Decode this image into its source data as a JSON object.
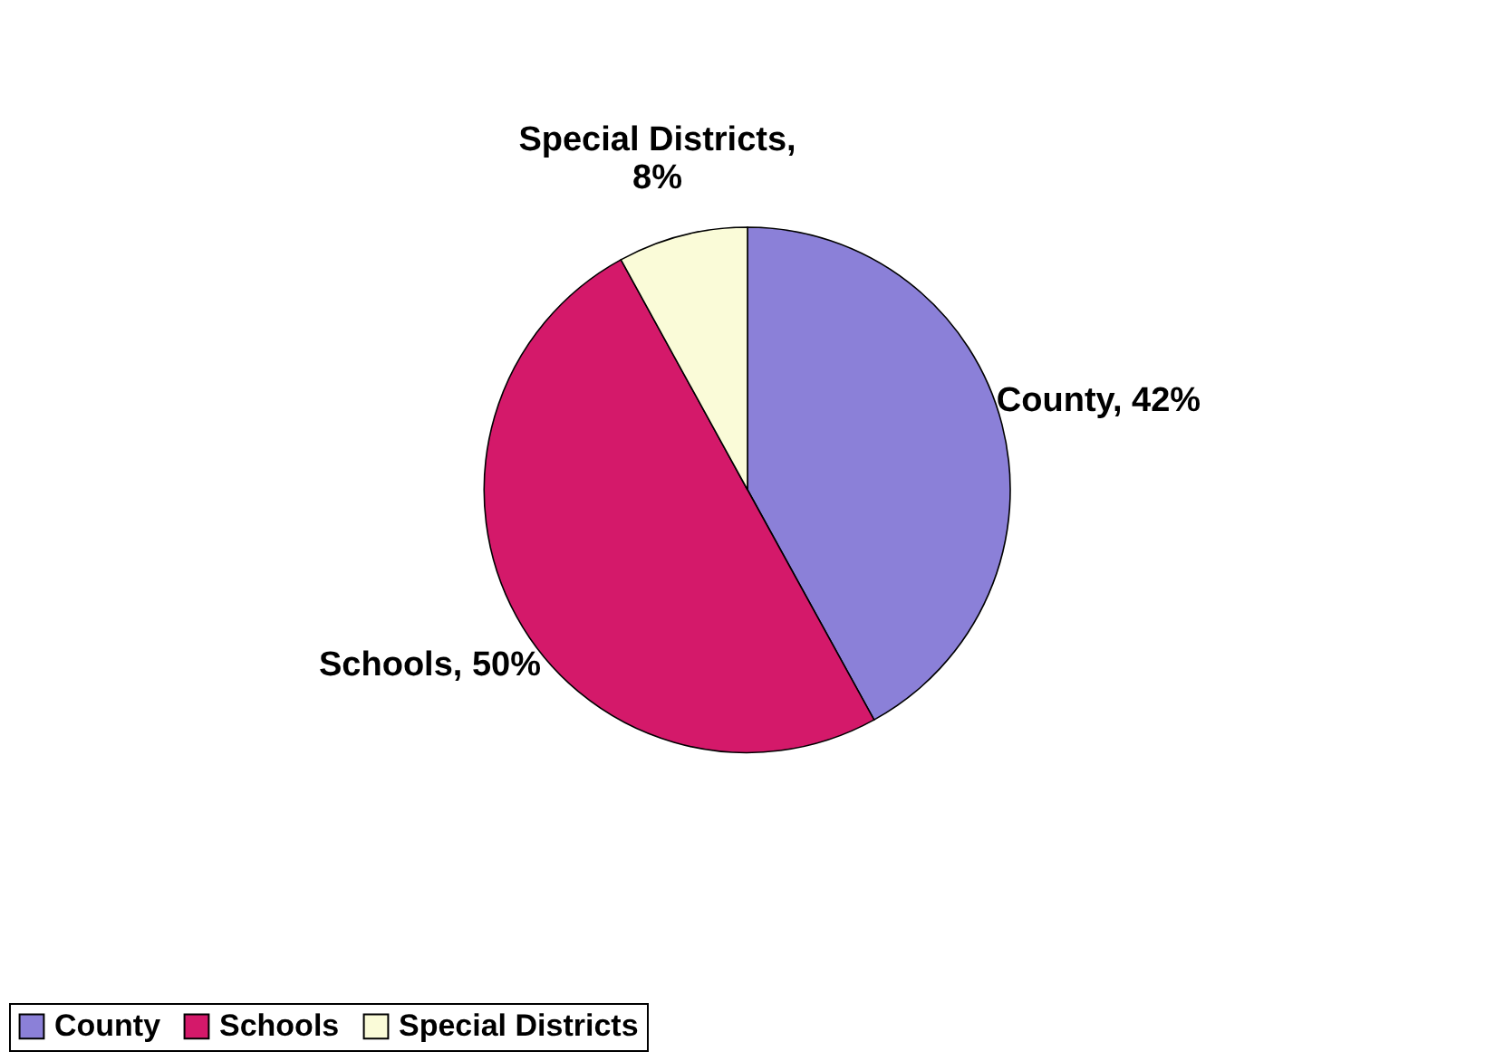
{
  "chart_data": {
    "type": "pie",
    "categories": [
      "County",
      "Schools",
      "Special Districts"
    ],
    "values": [
      42,
      50,
      8
    ],
    "value_labels": [
      "County, 42%",
      "Schools, 50%",
      "Special Districts,\n8%"
    ],
    "colors": [
      "#8b80d8",
      "#d4196a",
      "#fafbd8"
    ],
    "legend": "bottom"
  }
}
